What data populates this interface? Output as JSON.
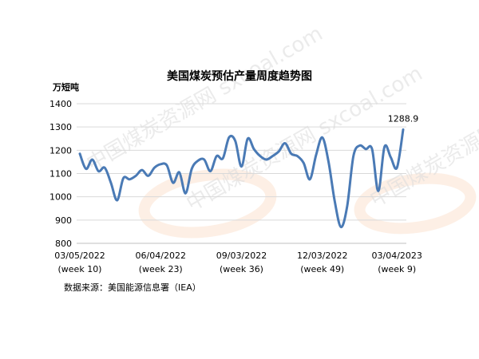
{
  "chart_data": {
    "type": "line",
    "title": "美国煤炭预估产量周度趋势图",
    "ylabel": "万短吨",
    "xlabel": "",
    "ylim": [
      800,
      1400
    ],
    "yticks": [
      800,
      900,
      1000,
      1100,
      1200,
      1300,
      1400
    ],
    "grid": "horizontal",
    "legend": "none",
    "xtick_labels": [
      {
        "index": 0,
        "date": "03/05/2022",
        "week": "(week 10)"
      },
      {
        "index": 13,
        "date": "06/04/2022",
        "week": "(week 23)"
      },
      {
        "index": 26,
        "date": "09/03/2022",
        "week": "(week 36)"
      },
      {
        "index": 39,
        "date": "12/03/2022",
        "week": "(week 49)"
      },
      {
        "index": 51,
        "date": "03/04/2023",
        "week": "(week 9)"
      }
    ],
    "series": [
      {
        "color": "#4a7ab5",
        "values": [
          1185,
          1120,
          1160,
          1110,
          1125,
          1060,
          985,
          1080,
          1075,
          1090,
          1115,
          1090,
          1125,
          1140,
          1135,
          1060,
          1105,
          1015,
          1120,
          1155,
          1160,
          1110,
          1175,
          1165,
          1255,
          1240,
          1130,
          1250,
          1205,
          1175,
          1160,
          1175,
          1195,
          1230,
          1185,
          1175,
          1145,
          1075,
          1180,
          1255,
          1150,
          980,
          870,
          960,
          1175,
          1220,
          1205,
          1205,
          1025,
          1215,
          1170,
          1125,
          1288.9
        ]
      }
    ],
    "annotations": [
      {
        "label": "1288.9",
        "index": 52,
        "value": 1288.9
      }
    ]
  },
  "source_text": "数据来源：美国能源信息署（IEA）",
  "watermark_text": "中国煤炭资源网 sxcoal.com"
}
